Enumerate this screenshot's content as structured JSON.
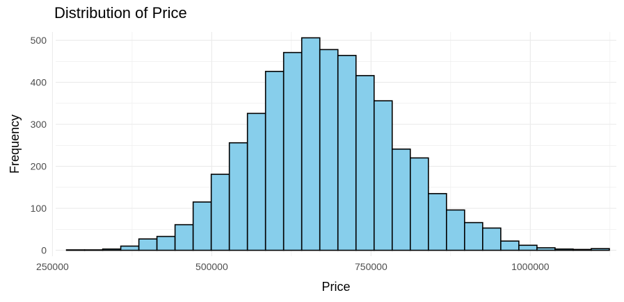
{
  "chart_data": {
    "type": "histogram",
    "title": "Distribution of Price",
    "xlabel": "Price",
    "ylabel": "Frequency",
    "xlim": [
      255000,
      1135000
    ],
    "ylim": [
      -14,
      520
    ],
    "x_ticks": [
      250000,
      500000,
      750000,
      1000000
    ],
    "x_tick_labels": [
      "250000",
      "500000",
      "750000",
      "1000000"
    ],
    "y_ticks": [
      0,
      100,
      200,
      300,
      400,
      500
    ],
    "y_tick_labels": [
      "0",
      "100",
      "200",
      "300",
      "400",
      "500"
    ],
    "grid": true,
    "legend": "none",
    "colors": {
      "bar_fill": "#87CEEB",
      "bar_outline": "#000000",
      "grid": "#ebebeb",
      "tick_text": "#4d4d4d"
    },
    "bin_edges": [
      272000,
      300400,
      328800,
      357200,
      385600,
      414000,
      442400,
      470800,
      499200,
      527600,
      556000,
      584400,
      612800,
      641200,
      669600,
      698000,
      726400,
      754800,
      783200,
      811600,
      840000,
      868400,
      896800,
      925200,
      953600,
      982000,
      1010400,
      1038800,
      1067200,
      1095600,
      1124000
    ],
    "values": [
      1,
      1,
      3,
      10,
      27,
      33,
      61,
      115,
      181,
      256,
      326,
      426,
      471,
      506,
      478,
      464,
      416,
      356,
      241,
      220,
      135,
      96,
      66,
      53,
      22,
      12,
      6,
      3,
      2,
      4
    ]
  }
}
